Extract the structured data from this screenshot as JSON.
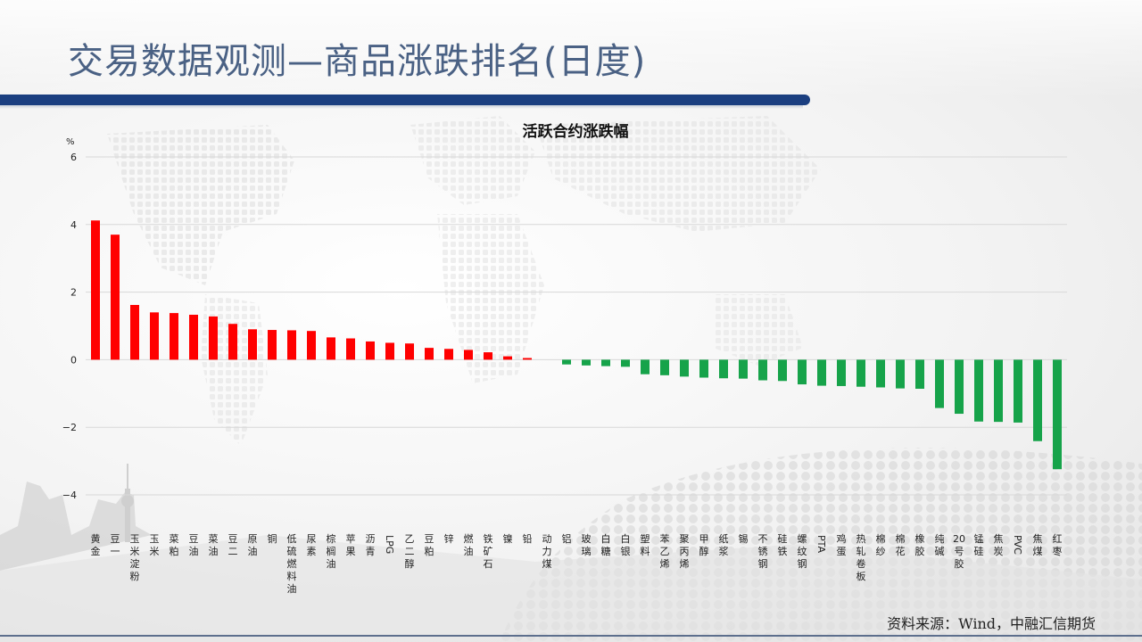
{
  "slide": {
    "title": "交易数据观测—商品涨跌排名(日度)",
    "source": "资料来源：Wind，中融汇信期货"
  },
  "colors": {
    "up": "#ff0000",
    "down": "#16a34a",
    "title": "#4a6184",
    "band": "#1b3f80"
  },
  "chart_data": {
    "type": "bar",
    "title": "活跃合约涨跌幅",
    "unit": "%",
    "ylim": [
      -4,
      6
    ],
    "yticks": [
      -4,
      -2,
      0,
      2,
      4,
      6
    ],
    "grid": true,
    "categories": [
      "黄金",
      "豆一",
      "玉米淀粉",
      "玉米",
      "菜粕",
      "豆油",
      "菜油",
      "豆二",
      "原油",
      "铜",
      "低硫燃料油",
      "尿素",
      "棕榈油",
      "苹果",
      "沥青",
      "LPG",
      "乙二醇",
      "豆粕",
      "锌",
      "燃油",
      "铁矿石",
      "镍",
      "铅",
      "动力煤",
      "铝",
      "玻璃",
      "白糖",
      "白银",
      "塑料",
      "苯乙烯",
      "聚丙烯",
      "甲醇",
      "纸浆",
      "锡",
      "不锈钢",
      "硅铁",
      "螺纹钢",
      "PTA",
      "鸡蛋",
      "热轧卷板",
      "棉纱",
      "棉花",
      "橡胶",
      "纯碱",
      "20号胶",
      "锰硅",
      "焦炭",
      "PVC",
      "焦煤",
      "红枣"
    ],
    "values": [
      4.12,
      3.7,
      1.62,
      1.4,
      1.38,
      1.33,
      1.28,
      1.06,
      0.9,
      0.88,
      0.87,
      0.85,
      0.66,
      0.63,
      0.54,
      0.5,
      0.48,
      0.35,
      0.32,
      0.29,
      0.22,
      0.1,
      0.05,
      0.0,
      -0.14,
      -0.17,
      -0.19,
      -0.21,
      -0.43,
      -0.46,
      -0.5,
      -0.53,
      -0.55,
      -0.56,
      -0.61,
      -0.63,
      -0.73,
      -0.77,
      -0.78,
      -0.8,
      -0.82,
      -0.85,
      -0.86,
      -1.43,
      -1.6,
      -1.83,
      -1.84,
      -1.86,
      -2.41,
      -3.24
    ]
  }
}
